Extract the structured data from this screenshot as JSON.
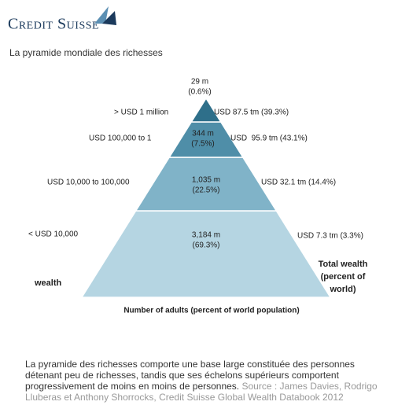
{
  "header": {
    "logo": "Credit Suisse",
    "title": "La pyramide mondiale des richesses"
  },
  "pyramid": {
    "levels": [
      {
        "wealth_range": "> USD 1 million",
        "adults": "29 m",
        "adults_share": "(0.6%)",
        "total_wealth": "USD 87.5 tm (39.3%)"
      },
      {
        "wealth_range": "USD 100,000 to 1",
        "adults": "344 m",
        "adults_share": "(7.5%)",
        "total_wealth": "USD  95.9 tm (43.1%)"
      },
      {
        "wealth_range": "USD 10,000 to 100,000",
        "adults": "1,035 m",
        "adults_share": "(22.5%)",
        "total_wealth": "USD 32.1 tm (14.4%)"
      },
      {
        "wealth_range": "< USD 10,000",
        "adults": "3,184 m",
        "adults_share": "(69.3%)",
        "total_wealth": "USD 7.3 tm (3.3%)"
      }
    ],
    "left_label": "wealth",
    "right_label": [
      "Total wealth",
      "(percent of",
      "world)"
    ],
    "bottom_label": "Number of adults (percent of world population)"
  },
  "caption": {
    "text": "La pyramide des richesses comporte une base large constituée des personnes détenant peu de richesses, tandis que ses échelons supérieurs comportent progressivement de moins en moins de personnes.",
    "source": "Source : James Davies, Rodrigo Lluberas et Anthony Shorrocks, Credit Suisse Global Wealth Databook 2012"
  }
}
